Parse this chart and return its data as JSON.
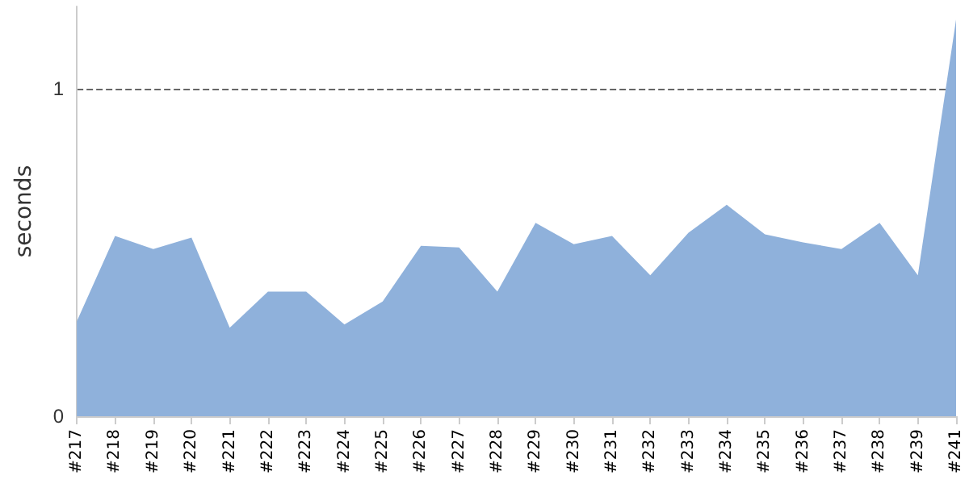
{
  "chart_data": {
    "type": "area",
    "ylabel": "seconds",
    "categories": [
      "#217",
      "#218",
      "#219",
      "#220",
      "#221",
      "#222",
      "#223",
      "#224",
      "#225",
      "#226",
      "#227",
      "#228",
      "#229",
      "#230",
      "#231",
      "#232",
      "#233",
      "#234",
      "#235",
      "#236",
      "#237",
      "#238",
      "#239",
      "#241"
    ],
    "series": [
      {
        "color": "#8fb1db",
        "values": [
          0.29,
          0.55,
          0.51,
          0.545,
          0.27,
          0.38,
          0.38,
          0.28,
          0.35,
          0.52,
          0.515,
          0.38,
          0.59,
          0.525,
          0.55,
          0.43,
          0.56,
          0.645,
          0.555,
          0.53,
          0.51,
          0.59,
          0.43,
          1.21
        ]
      }
    ],
    "ylim": [
      0,
      1.25
    ],
    "yticks": [
      0,
      1
    ],
    "grid": "y"
  }
}
